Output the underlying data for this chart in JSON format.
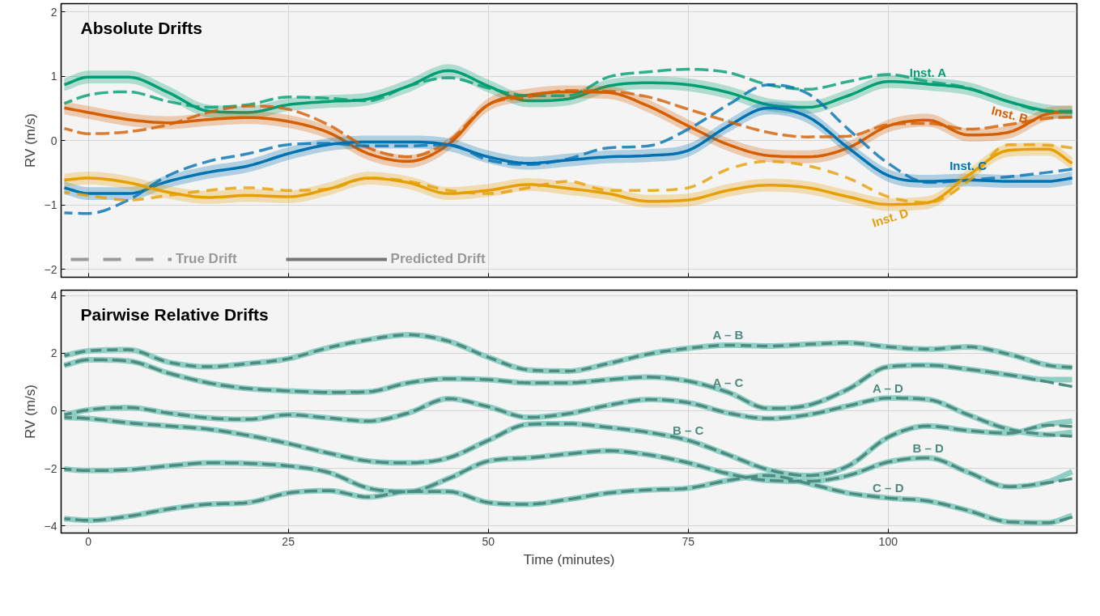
{
  "chart_data": [
    {
      "type": "line",
      "title": "Absolute Drifts",
      "ylabel": "RV (m/s)",
      "xlim": [
        -3.4,
        123.6
      ],
      "ylim": [
        -2.12,
        2.13
      ],
      "xticks": [
        0,
        25,
        50,
        75,
        100
      ],
      "yticks": [
        -2,
        -1,
        0,
        1,
        2
      ],
      "grid": true,
      "tick_labels": "y",
      "annotations": [
        "True Drift",
        "Predicted Drift"
      ],
      "x": [
        -3,
        0,
        5,
        10,
        15,
        20,
        25,
        30,
        35,
        40,
        45,
        50,
        55,
        60,
        65,
        70,
        75,
        80,
        85,
        90,
        95,
        100,
        105,
        110,
        115,
        120,
        123
      ],
      "series": [
        {
          "color": "#009e73",
          "line_style": "dashed",
          "values": [
            0.58,
            0.71,
            0.76,
            0.61,
            0.52,
            0.56,
            0.68,
            0.66,
            0.62,
            0.85,
            0.98,
            0.82,
            0.7,
            0.7,
            0.99,
            1.07,
            1.11,
            1.06,
            0.87,
            0.8,
            0.92,
            1.03,
            0.92,
            0.82,
            0.61,
            0.46,
            0.46
          ]
        },
        {
          "color": "#d55e00",
          "line_style": "dashed",
          "values": [
            0.19,
            0.11,
            0.14,
            0.25,
            0.44,
            0.54,
            0.49,
            0.25,
            -0.11,
            -0.25,
            -0.01,
            0.56,
            0.68,
            0.78,
            0.77,
            0.68,
            0.49,
            0.3,
            0.13,
            0.06,
            0.07,
            0.25,
            0.27,
            0.18,
            0.25,
            0.35,
            0.37
          ]
        },
        {
          "color": "#0072b2",
          "line_style": "dashed",
          "values": [
            -1.12,
            -1.13,
            -0.92,
            -0.54,
            -0.32,
            -0.2,
            -0.06,
            -0.04,
            -0.08,
            -0.08,
            -0.06,
            -0.3,
            -0.37,
            -0.28,
            -0.11,
            -0.08,
            0.18,
            0.56,
            0.87,
            0.73,
            0.18,
            -0.35,
            -0.65,
            -0.61,
            -0.56,
            -0.49,
            -0.44
          ]
        },
        {
          "color": "#e69f00",
          "line_style": "dashed",
          "values": [
            -0.8,
            -0.85,
            -0.92,
            -0.85,
            -0.77,
            -0.73,
            -0.77,
            -0.75,
            -0.58,
            -0.63,
            -0.77,
            -0.82,
            -0.73,
            -0.63,
            -0.77,
            -0.77,
            -0.73,
            -0.44,
            -0.32,
            -0.39,
            -0.58,
            -0.87,
            -0.96,
            -0.63,
            -0.06,
            -0.07,
            -0.11
          ]
        },
        {
          "name": "Inst. A",
          "color": "#009e73",
          "values": [
            0.87,
            0.99,
            0.99,
            0.75,
            0.46,
            0.44,
            0.56,
            0.61,
            0.65,
            0.85,
            1.09,
            0.85,
            0.62,
            0.65,
            0.85,
            0.9,
            0.87,
            0.75,
            0.56,
            0.52,
            0.7,
            0.92,
            0.88,
            0.81,
            0.61,
            0.46,
            0.44
          ],
          "lower": [
            0.77,
            0.89,
            0.89,
            0.65,
            0.36,
            0.34,
            0.46,
            0.51,
            0.55,
            0.75,
            0.99,
            0.75,
            0.52,
            0.55,
            0.75,
            0.8,
            0.77,
            0.65,
            0.46,
            0.42,
            0.6,
            0.82,
            0.78,
            0.71,
            0.51,
            0.36,
            0.34
          ],
          "upper": [
            0.97,
            1.09,
            1.09,
            0.85,
            0.56,
            0.54,
            0.66,
            0.71,
            0.75,
            0.95,
            1.19,
            0.95,
            0.72,
            0.75,
            0.95,
            1.0,
            0.97,
            0.85,
            0.66,
            0.62,
            0.8,
            1.02,
            0.98,
            0.91,
            0.71,
            0.56,
            0.54
          ]
        },
        {
          "name": "Inst. B",
          "color": "#d55e00",
          "values": [
            0.51,
            0.44,
            0.33,
            0.28,
            0.33,
            0.36,
            0.3,
            0.13,
            -0.2,
            -0.32,
            -0.06,
            0.56,
            0.71,
            0.76,
            0.75,
            0.54,
            0.23,
            -0.06,
            -0.23,
            -0.25,
            -0.11,
            0.23,
            0.32,
            0.09,
            0.13,
            0.42,
            0.45
          ],
          "lower": [
            0.41,
            0.34,
            0.23,
            0.18,
            0.23,
            0.26,
            0.2,
            0.03,
            -0.3,
            -0.42,
            -0.16,
            0.46,
            0.61,
            0.66,
            0.65,
            0.44,
            0.13,
            -0.16,
            -0.33,
            -0.35,
            -0.21,
            0.13,
            0.22,
            -0.01,
            0.03,
            0.32,
            0.35
          ],
          "upper": [
            0.61,
            0.54,
            0.43,
            0.38,
            0.43,
            0.46,
            0.4,
            0.23,
            -0.1,
            -0.22,
            0.04,
            0.66,
            0.81,
            0.86,
            0.85,
            0.64,
            0.33,
            0.04,
            -0.13,
            -0.15,
            -0.01,
            0.33,
            0.42,
            0.19,
            0.23,
            0.52,
            0.55
          ]
        },
        {
          "name": "Inst. C",
          "color": "#0072b2",
          "values": [
            -0.73,
            -0.82,
            -0.82,
            -0.63,
            -0.49,
            -0.39,
            -0.2,
            -0.06,
            -0.02,
            -0.02,
            -0.06,
            -0.25,
            -0.35,
            -0.3,
            -0.25,
            -0.23,
            -0.15,
            0.23,
            0.51,
            0.37,
            -0.11,
            -0.54,
            -0.63,
            -0.61,
            -0.63,
            -0.63,
            -0.58
          ],
          "lower": [
            -0.83,
            -0.92,
            -0.92,
            -0.73,
            -0.59,
            -0.49,
            -0.3,
            -0.16,
            -0.12,
            -0.12,
            -0.16,
            -0.35,
            -0.45,
            -0.4,
            -0.35,
            -0.33,
            -0.25,
            0.13,
            0.41,
            0.27,
            -0.21,
            -0.64,
            -0.73,
            -0.71,
            -0.73,
            -0.73,
            -0.68
          ],
          "upper": [
            -0.63,
            -0.72,
            -0.72,
            -0.53,
            -0.39,
            -0.29,
            -0.1,
            0.04,
            0.08,
            0.08,
            0.04,
            -0.15,
            -0.25,
            -0.2,
            -0.15,
            -0.13,
            -0.05,
            0.33,
            0.61,
            0.47,
            -0.01,
            -0.44,
            -0.53,
            -0.51,
            -0.53,
            -0.53,
            -0.48
          ]
        },
        {
          "name": "Inst. D",
          "color": "#e69f00",
          "values": [
            -0.61,
            -0.58,
            -0.65,
            -0.8,
            -0.88,
            -0.85,
            -0.87,
            -0.75,
            -0.58,
            -0.65,
            -0.82,
            -0.77,
            -0.68,
            -0.74,
            -0.82,
            -0.94,
            -0.92,
            -0.77,
            -0.69,
            -0.73,
            -0.87,
            -0.99,
            -0.96,
            -0.54,
            -0.15,
            -0.13,
            -0.35
          ],
          "lower": [
            -0.71,
            -0.68,
            -0.75,
            -0.9,
            -0.98,
            -0.95,
            -0.97,
            -0.85,
            -0.68,
            -0.75,
            -0.92,
            -0.87,
            -0.78,
            -0.84,
            -0.92,
            -1.04,
            -1.02,
            -0.87,
            -0.79,
            -0.83,
            -0.97,
            -1.09,
            -1.06,
            -0.64,
            -0.25,
            -0.23,
            -0.45
          ],
          "upper": [
            -0.51,
            -0.48,
            -0.55,
            -0.7,
            -0.78,
            -0.75,
            -0.77,
            -0.65,
            -0.48,
            -0.55,
            -0.72,
            -0.67,
            -0.58,
            -0.64,
            -0.72,
            -0.84,
            -0.82,
            -0.67,
            -0.59,
            -0.63,
            -0.77,
            -0.89,
            -0.86,
            -0.44,
            -0.05,
            -0.03,
            -0.25
          ]
        }
      ]
    },
    {
      "type": "line",
      "title": "Pairwise Relative Drifts",
      "xlabel": "Time (minutes)",
      "ylabel": "RV (m/s)",
      "xlim": [
        -3.4,
        123.6
      ],
      "ylim": [
        -4.25,
        4.19
      ],
      "xticks": [
        0,
        25,
        50,
        75,
        100
      ],
      "yticks": [
        -4,
        -2,
        0,
        2,
        4
      ],
      "grid": true,
      "x": [
        -3,
        0,
        5,
        10,
        15,
        20,
        25,
        30,
        35,
        40,
        45,
        50,
        55,
        60,
        65,
        70,
        75,
        80,
        85,
        90,
        95,
        100,
        105,
        110,
        115,
        120,
        123
      ],
      "series": [
        {
          "color": "#8fcfc3",
          "values": [
            1.92,
            2.08,
            2.12,
            1.69,
            1.53,
            1.64,
            1.81,
            2.19,
            2.47,
            2.64,
            2.42,
            1.86,
            1.42,
            1.38,
            1.64,
            1.97,
            2.17,
            2.28,
            2.25,
            2.31,
            2.36,
            2.22,
            2.14,
            2.22,
            1.97,
            1.58,
            1.5
          ]
        },
        {
          "color": "#8fcfc3",
          "values": [
            1.58,
            1.77,
            1.73,
            1.31,
            0.97,
            0.77,
            0.69,
            0.64,
            0.66,
            0.97,
            1.11,
            1.08,
            0.97,
            0.97,
            1.08,
            1.17,
            1.03,
            0.64,
            0.08,
            0.19,
            0.75,
            1.53,
            1.58,
            1.44,
            1.25,
            1.08,
            1.08
          ]
        },
        {
          "color": "#8fcfc3",
          "values": [
            -0.14,
            0.03,
            0.11,
            -0.08,
            -0.25,
            -0.3,
            -0.14,
            -0.25,
            -0.36,
            -0.08,
            0.42,
            0.14,
            -0.23,
            -0.1,
            0.19,
            0.39,
            0.28,
            -0.08,
            -0.27,
            -0.14,
            0.17,
            0.44,
            0.39,
            -0.14,
            -0.64,
            -0.83,
            -0.75
          ]
        },
        {
          "color": "#8fcfc3",
          "values": [
            -0.23,
            -0.27,
            -0.42,
            -0.53,
            -0.64,
            -0.86,
            -1.14,
            -1.47,
            -1.75,
            -1.81,
            -1.64,
            -1.03,
            -0.47,
            -0.45,
            -0.58,
            -0.75,
            -1.03,
            -1.53,
            -2.05,
            -2.25,
            -1.92,
            -0.92,
            -0.53,
            -0.69,
            -0.78,
            -0.47,
            -0.36
          ]
        },
        {
          "color": "#8fcfc3",
          "values": [
            -2.03,
            -2.08,
            -2.05,
            -1.92,
            -1.81,
            -1.83,
            -1.92,
            -2.14,
            -2.69,
            -2.81,
            -2.36,
            -1.75,
            -1.64,
            -1.5,
            -1.39,
            -1.53,
            -1.81,
            -2.19,
            -2.42,
            -2.45,
            -2.25,
            -1.78,
            -1.64,
            -2.14,
            -2.64,
            -2.47,
            -2.12
          ]
        },
        {
          "color": "#8fcfc3",
          "values": [
            -3.75,
            -3.81,
            -3.67,
            -3.42,
            -3.25,
            -3.19,
            -2.86,
            -2.78,
            -3.0,
            -2.81,
            -2.81,
            -3.19,
            -3.25,
            -3.08,
            -2.86,
            -2.75,
            -2.69,
            -2.42,
            -2.25,
            -2.53,
            -2.86,
            -3.03,
            -3.14,
            -3.47,
            -3.86,
            -3.89,
            -3.64
          ]
        },
        {
          "name": "A – B",
          "color": "#4e8a80",
          "line_style": "dashed",
          "values": [
            1.92,
            2.08,
            2.12,
            1.69,
            1.53,
            1.64,
            1.81,
            2.19,
            2.47,
            2.64,
            2.42,
            1.86,
            1.42,
            1.38,
            1.64,
            1.97,
            2.17,
            2.28,
            2.25,
            2.31,
            2.36,
            2.22,
            2.14,
            2.22,
            1.97,
            1.58,
            1.5
          ]
        },
        {
          "name": "A – C",
          "color": "#4e8a80",
          "line_style": "dashed",
          "values": [
            1.58,
            1.77,
            1.73,
            1.31,
            0.97,
            0.77,
            0.69,
            0.64,
            0.66,
            0.97,
            1.11,
            1.08,
            0.97,
            0.97,
            1.08,
            1.17,
            1.03,
            0.64,
            0.08,
            0.19,
            0.75,
            1.53,
            1.58,
            1.44,
            1.25,
            1.0,
            0.84
          ]
        },
        {
          "name": "A – D",
          "color": "#4e8a80",
          "line_style": "dashed",
          "values": [
            -0.14,
            0.03,
            0.11,
            -0.08,
            -0.25,
            -0.3,
            -0.14,
            -0.25,
            -0.36,
            -0.08,
            0.42,
            0.14,
            -0.23,
            -0.1,
            0.19,
            0.39,
            0.28,
            -0.08,
            -0.27,
            -0.14,
            0.17,
            0.44,
            0.39,
            -0.14,
            -0.64,
            -0.83,
            -0.89
          ]
        },
        {
          "name": "B – C",
          "color": "#4e8a80",
          "line_style": "dashed",
          "values": [
            -0.23,
            -0.27,
            -0.42,
            -0.53,
            -0.64,
            -0.86,
            -1.14,
            -1.47,
            -1.75,
            -1.81,
            -1.64,
            -1.03,
            -0.47,
            -0.45,
            -0.58,
            -0.75,
            -1.03,
            -1.53,
            -2.05,
            -2.25,
            -1.92,
            -0.92,
            -0.53,
            -0.69,
            -0.78,
            -0.5,
            -0.55
          ]
        },
        {
          "name": "B – D",
          "color": "#4e8a80",
          "line_style": "dashed",
          "values": [
            -2.03,
            -2.08,
            -2.05,
            -1.92,
            -1.81,
            -1.83,
            -1.92,
            -2.14,
            -2.69,
            -2.81,
            -2.36,
            -1.75,
            -1.64,
            -1.5,
            -1.39,
            -1.53,
            -1.81,
            -2.19,
            -2.42,
            -2.45,
            -2.25,
            -1.78,
            -1.64,
            -2.14,
            -2.64,
            -2.5,
            -2.36
          ]
        },
        {
          "name": "C – D",
          "color": "#4e8a80",
          "line_style": "dashed",
          "values": [
            -3.75,
            -3.81,
            -3.67,
            -3.42,
            -3.25,
            -3.19,
            -2.86,
            -2.78,
            -3.0,
            -2.81,
            -2.81,
            -3.19,
            -3.25,
            -3.08,
            -2.86,
            -2.75,
            -2.69,
            -2.42,
            -2.25,
            -2.53,
            -2.86,
            -3.03,
            -3.14,
            -3.47,
            -3.86,
            -3.89,
            -3.7
          ]
        }
      ]
    }
  ]
}
